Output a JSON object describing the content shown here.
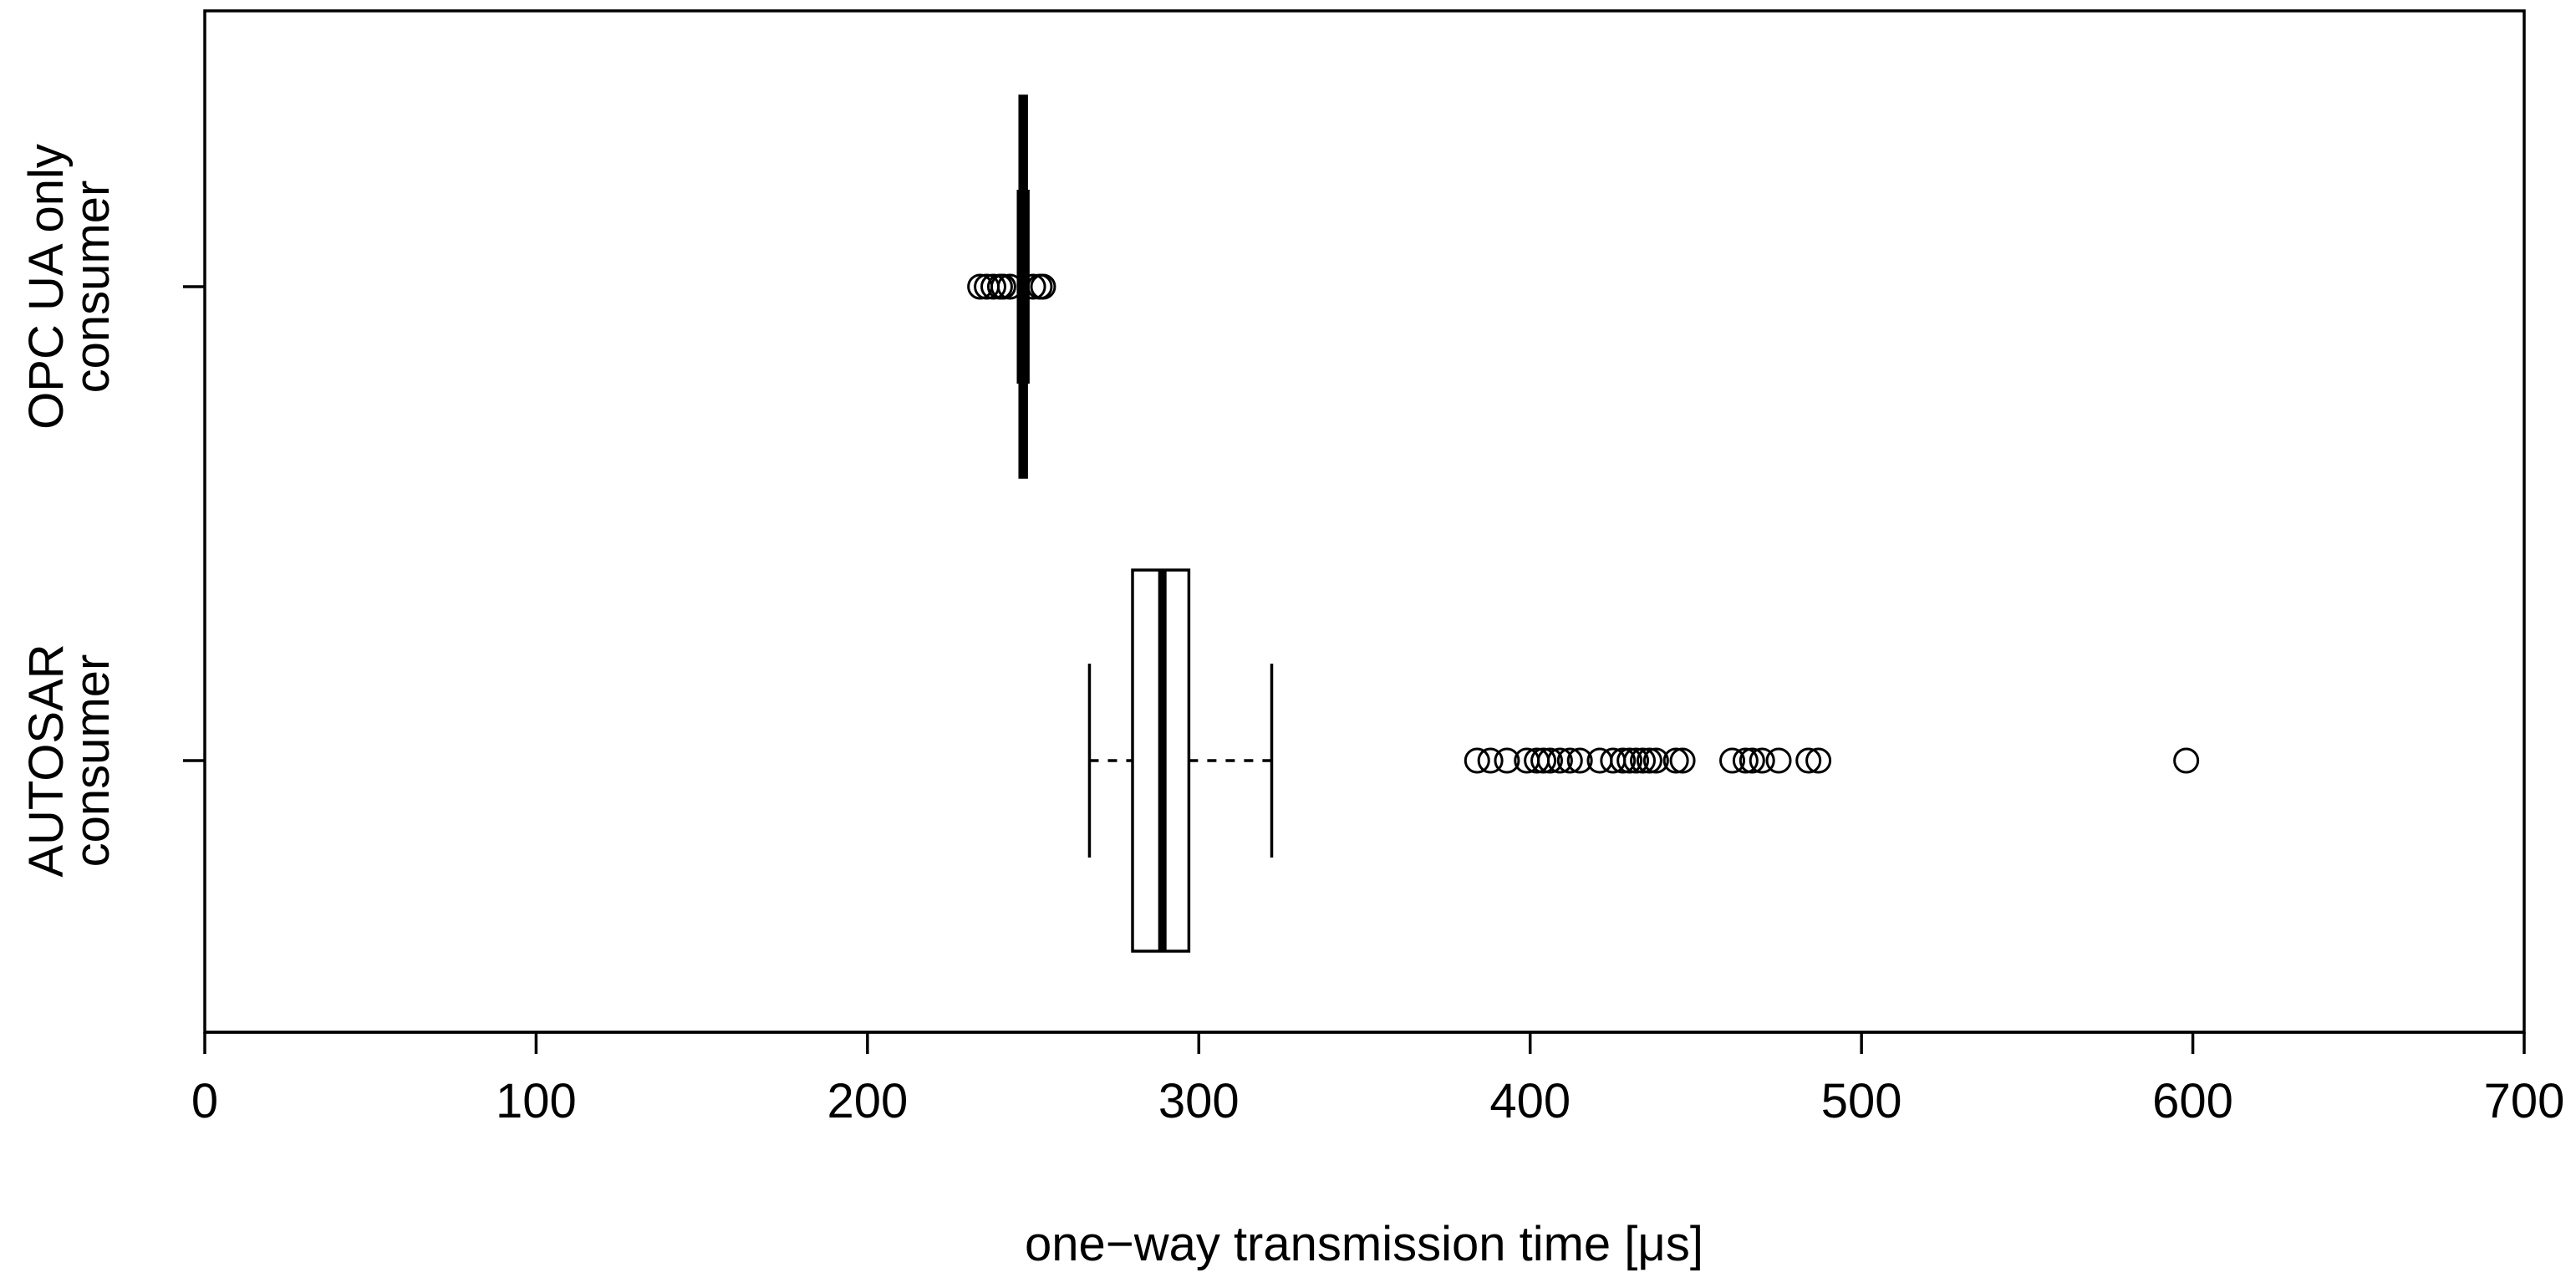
{
  "chart_data": {
    "type": "boxplot",
    "orientation": "horizontal",
    "title": "",
    "xlabel": "one−way transmission time [μs]",
    "ylabel": "",
    "xlim": [
      0,
      700
    ],
    "x_ticks": [
      "0",
      "100",
      "200",
      "300",
      "400",
      "500",
      "600",
      "700"
    ],
    "grid": false,
    "legend": "none",
    "line_color": "#000000",
    "categories": [
      {
        "label_lines": [
          "OPC UA only",
          "consumer"
        ],
        "whisker_low": 245.5,
        "q1": 246,
        "median": 247,
        "q3": 248,
        "whisker_high": 248.5,
        "outliers": [
          234,
          236,
          238,
          240,
          241,
          243,
          250,
          252,
          253
        ]
      },
      {
        "label_lines": [
          "AUTOSAR",
          "consumer"
        ],
        "whisker_low": 267,
        "q1": 280,
        "median": 289,
        "q3": 297,
        "whisker_high": 322,
        "outliers": [
          384,
          388,
          393,
          399,
          402,
          404,
          406,
          409,
          412,
          415,
          421,
          425,
          428,
          430,
          432,
          434,
          436,
          438,
          444,
          446,
          461,
          465,
          467,
          470,
          475,
          484,
          487,
          598
        ]
      }
    ]
  }
}
